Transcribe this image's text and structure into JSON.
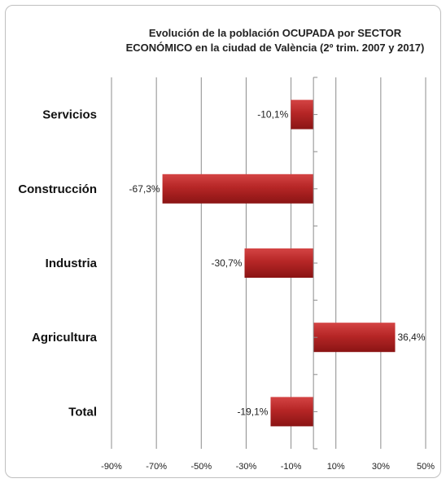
{
  "chart_data": {
    "type": "bar",
    "orientation": "horizontal",
    "title_lines": [
      "Evolución de la población OCUPADA por SECTOR",
      "ECONÓMICO en la ciudad de València (2º trim. 2007 y 2017)"
    ],
    "categories": [
      "Servicios",
      "Construcción",
      "Industria",
      "Agricultura",
      "Total"
    ],
    "values": [
      -10.1,
      -67.3,
      -30.7,
      36.4,
      -19.1
    ],
    "data_labels": [
      "-10,1%",
      "-67,3%",
      "-30,7%",
      "36,4%",
      "-19,1%"
    ],
    "x_ticks": [
      "-90%",
      "-70%",
      "-50%",
      "-30%",
      "-10%",
      "10%",
      "30%",
      "50%"
    ],
    "xlim": [
      -90,
      50
    ],
    "grid": "vertical",
    "legend": "none",
    "bar_color": "#b62626"
  }
}
